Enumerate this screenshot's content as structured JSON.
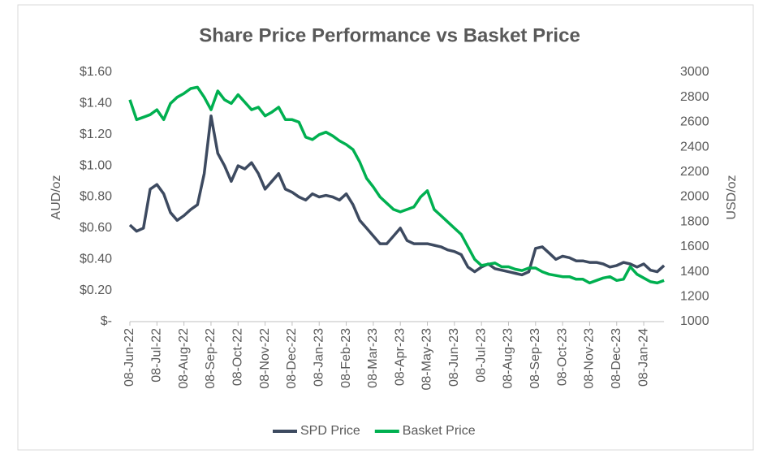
{
  "chart_data": {
    "type": "line",
    "title": "Share Price Performance vs Basket Price",
    "ylabel": "AUD/oz",
    "y2label": "USD/oz",
    "categories": [
      "08-Jun-22",
      null,
      null,
      null,
      "08-Jul-22",
      null,
      null,
      null,
      "08-Aug-22",
      null,
      null,
      null,
      "08-Sep-22",
      null,
      null,
      null,
      "08-Oct-22",
      null,
      null,
      null,
      "08-Nov-22",
      null,
      null,
      null,
      "08-Dec-22",
      null,
      null,
      null,
      "08-Jan-23",
      null,
      null,
      null,
      "08-Feb-23",
      null,
      null,
      null,
      "08-Mar-23",
      null,
      null,
      null,
      "08-Apr-23",
      null,
      null,
      null,
      "08-May-23",
      null,
      null,
      null,
      "08-Jun-23",
      null,
      null,
      null,
      "08-Jul-23",
      null,
      null,
      null,
      "08-Aug-23",
      null,
      null,
      null,
      "08-Sep-23",
      null,
      null,
      null,
      "08-Oct-23",
      null,
      null,
      null,
      "08-Nov-23",
      null,
      null,
      null,
      "08-Dec-23",
      null,
      null,
      null,
      "08-Jan-24",
      null,
      null,
      null
    ],
    "series": [
      {
        "name": "SPD Price",
        "color": "#3d4a60",
        "values": [
          0.62,
          0.58,
          0.6,
          0.85,
          0.88,
          0.82,
          0.7,
          0.65,
          0.68,
          0.72,
          0.75,
          0.95,
          1.32,
          1.08,
          1.0,
          0.9,
          1.0,
          0.98,
          1.02,
          0.95,
          0.85,
          0.9,
          0.95,
          0.85,
          0.83,
          0.8,
          0.78,
          0.82,
          0.8,
          0.81,
          0.8,
          0.78,
          0.82,
          0.75,
          0.65,
          0.6,
          0.55,
          0.5,
          0.5,
          0.55,
          0.6,
          0.52,
          0.5,
          0.5,
          0.5,
          0.49,
          0.48,
          0.46,
          0.45,
          0.43,
          0.35,
          0.32,
          0.35,
          0.37,
          0.34,
          0.33,
          0.32,
          0.31,
          0.3,
          0.32,
          0.47,
          0.48,
          0.44,
          0.4,
          0.42,
          0.41,
          0.39,
          0.39,
          0.38,
          0.38,
          0.37,
          0.35,
          0.36,
          0.38,
          0.37,
          0.35,
          0.37,
          0.33,
          0.32,
          0.36
        ]
      },
      {
        "name": "Basket Price",
        "color": "#00b050",
        "axis": "y2",
        "values": [
          2780,
          2620,
          2640,
          2660,
          2700,
          2620,
          2750,
          2800,
          2830,
          2870,
          2880,
          2800,
          2700,
          2850,
          2780,
          2750,
          2820,
          2760,
          2700,
          2720,
          2650,
          2680,
          2720,
          2620,
          2620,
          2600,
          2480,
          2460,
          2500,
          2520,
          2490,
          2450,
          2420,
          2380,
          2280,
          2150,
          2080,
          2000,
          1950,
          1900,
          1880,
          1900,
          1920,
          2000,
          2050,
          1900,
          1850,
          1800,
          1750,
          1700,
          1600,
          1500,
          1450,
          1460,
          1470,
          1440,
          1440,
          1420,
          1410,
          1430,
          1430,
          1400,
          1380,
          1370,
          1360,
          1360,
          1340,
          1340,
          1310,
          1330,
          1350,
          1360,
          1330,
          1340,
          1440,
          1380,
          1350,
          1320,
          1310,
          1330
        ]
      }
    ],
    "ylim": [
      0,
      1.6
    ],
    "yticks": [
      {
        "value": 0,
        "label": "$-"
      },
      {
        "value": 0.2,
        "label": "$0.20"
      },
      {
        "value": 0.4,
        "label": "$0.40"
      },
      {
        "value": 0.6,
        "label": "$0.60"
      },
      {
        "value": 0.8,
        "label": "$0.80"
      },
      {
        "value": 1.0,
        "label": "$1.00"
      },
      {
        "value": 1.2,
        "label": "$1.20"
      },
      {
        "value": 1.4,
        "label": "$1.40"
      },
      {
        "value": 1.6,
        "label": "$1.60"
      }
    ],
    "y2lim": [
      1000,
      3000
    ],
    "y2ticks": [
      1000,
      1200,
      1400,
      1600,
      1800,
      2000,
      2200,
      2400,
      2600,
      2800,
      3000
    ],
    "legend": "bottom"
  }
}
